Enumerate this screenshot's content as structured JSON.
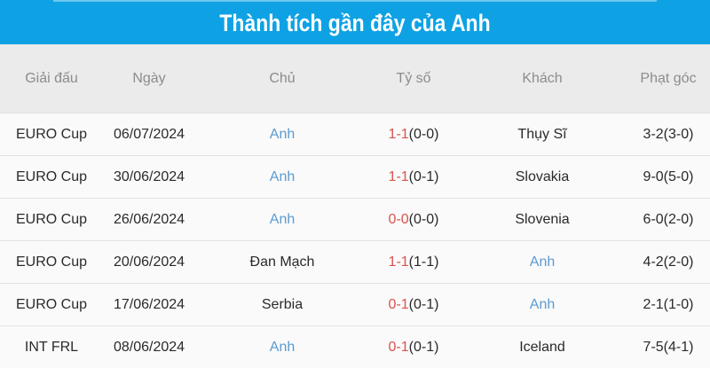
{
  "title": "Thành tích gần đây của Anh",
  "colors": {
    "header_bar": "#0ea2e4",
    "team_highlight": "#5b9bd1",
    "score_red": "#d9534f"
  },
  "columns": [
    "Giải đấu",
    "Ngày",
    "Chủ",
    "Tỷ số",
    "Khách",
    "Phạt góc"
  ],
  "rows": [
    {
      "league": "EURO Cup",
      "date": "06/07/2024",
      "home": "Anh",
      "ft": "1-1",
      "ht": "(0-0)",
      "away": "Thụy Sĩ",
      "corners": "3-2(3-0)"
    },
    {
      "league": "EURO Cup",
      "date": "30/06/2024",
      "home": "Anh",
      "ft": "1-1",
      "ht": "(0-1)",
      "away": "Slovakia",
      "corners": "9-0(5-0)"
    },
    {
      "league": "EURO Cup",
      "date": "26/06/2024",
      "home": "Anh",
      "ft": "0-0",
      "ht": "(0-0)",
      "away": "Slovenia",
      "corners": "6-0(2-0)"
    },
    {
      "league": "EURO Cup",
      "date": "20/06/2024",
      "home": "Đan Mạch",
      "ft": "1-1",
      "ht": "(1-1)",
      "away": "Anh",
      "corners": "4-2(2-0)"
    },
    {
      "league": "EURO Cup",
      "date": "17/06/2024",
      "home": "Serbia",
      "ft": "0-1",
      "ht": "(0-1)",
      "away": "Anh",
      "corners": "2-1(1-0)"
    },
    {
      "league": "INT FRL",
      "date": "08/06/2024",
      "home": "Anh",
      "ft": "0-1",
      "ht": "(0-1)",
      "away": "Iceland",
      "corners": "7-5(4-1)"
    }
  ]
}
